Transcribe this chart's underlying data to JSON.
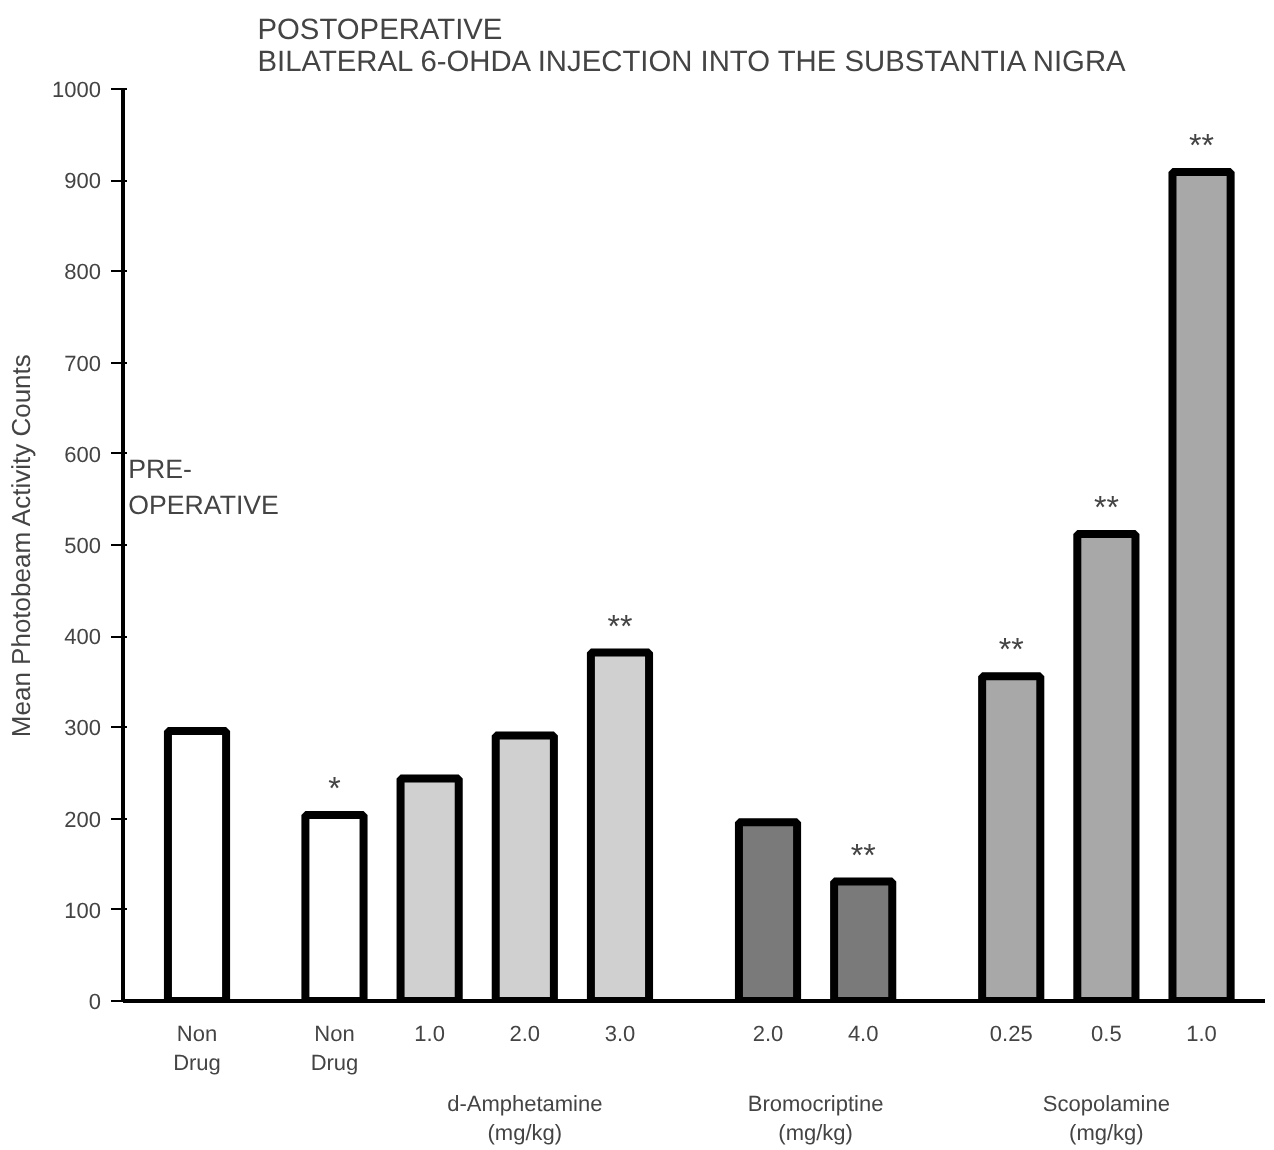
{
  "chart_data": {
    "type": "bar",
    "title": "POSTOPERATIVE\nBILATERAL 6-OHDA INJECTION INTO THE SUBSTANTIA NIGRA",
    "ylabel": "Mean Photobeam Activity Counts",
    "categories": [
      "Non\nDrug",
      "Non\nDrug",
      "1.0",
      "2.0",
      "3.0",
      "2.0",
      "4.0",
      "0.25",
      "0.5",
      "1.0"
    ],
    "values": [
      296,
      204,
      244,
      291,
      382,
      196,
      131,
      356,
      512,
      909
    ],
    "colors": [
      "#ffffff",
      "#ffffff",
      "#d0d0d0",
      "#d0d0d0",
      "#d0d0d0",
      "#7a7a7a",
      "#7a7a7a",
      "#a8a8a8",
      "#a8a8a8",
      "#a8a8a8"
    ],
    "value_labels": [
      null,
      "*",
      null,
      null,
      "**",
      null,
      "**",
      "**",
      "**",
      "**"
    ],
    "ylim": [
      0,
      1000
    ],
    "yticks": [
      0,
      100,
      200,
      300,
      400,
      500,
      600,
      700,
      800,
      900,
      1000
    ],
    "annotations": [
      "PRE-\nOPERATIVE",
      "d-Amphetamine\n(mg/kg)",
      "Bromocriptine\n(mg/kg)",
      "Scopolamine\n(mg/kg)"
    ],
    "grid": false
  }
}
